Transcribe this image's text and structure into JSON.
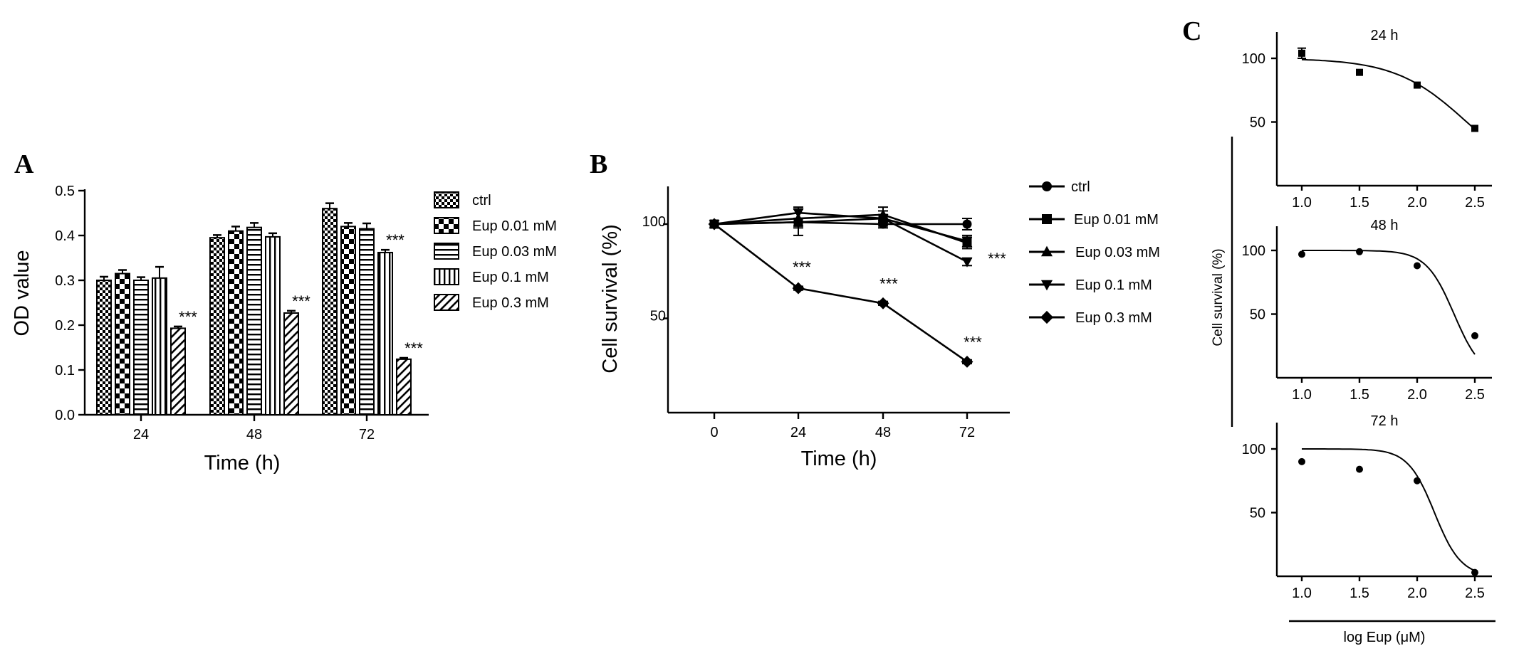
{
  "colors": {
    "ink": "#000000",
    "background": "#ffffff"
  },
  "panel_labels": [
    "A",
    "B",
    "C"
  ],
  "chart_data": [
    {
      "id": "A",
      "type": "bar",
      "xlabel": "Time (h)",
      "ylabel": "OD value",
      "ylim": [
        0,
        0.5
      ],
      "yticks": [
        "0.0",
        "0.1",
        "0.2",
        "0.3",
        "0.4",
        "0.5"
      ],
      "categories": [
        "24",
        "48",
        "72"
      ],
      "series": [
        {
          "name": "ctrl",
          "pattern": "checker-small",
          "values": [
            0.3,
            0.395,
            0.46
          ],
          "errors": [
            0.008,
            0.006,
            0.012
          ]
        },
        {
          "name": "Eup 0.01 mM",
          "pattern": "checker-large",
          "values": [
            0.315,
            0.41,
            0.42
          ],
          "errors": [
            0.008,
            0.01,
            0.008
          ]
        },
        {
          "name": "Eup 0.03 mM",
          "pattern": "horizontal",
          "values": [
            0.3,
            0.418,
            0.415
          ],
          "errors": [
            0.007,
            0.01,
            0.012
          ]
        },
        {
          "name": "Eup 0.1 mM",
          "pattern": "vertical",
          "values": [
            0.305,
            0.397,
            0.362
          ],
          "errors": [
            0.025,
            0.008,
            0.006
          ]
        },
        {
          "name": "Eup 0.3 mM",
          "pattern": "diagonal",
          "values": [
            0.193,
            0.227,
            0.124
          ],
          "errors": [
            0.004,
            0.005,
            0.003
          ]
        }
      ],
      "annotations": [
        {
          "category": "24",
          "series": "Eup 0.3 mM",
          "text": "***"
        },
        {
          "category": "48",
          "series": "Eup 0.3 mM",
          "text": "***"
        },
        {
          "category": "72",
          "series": "Eup 0.1 mM",
          "text": "***"
        },
        {
          "category": "72",
          "series": "Eup 0.3 mM",
          "text": "***"
        }
      ],
      "legend": "right"
    },
    {
      "id": "B",
      "type": "line",
      "xlabel": "Time (h)",
      "ylabel": "Cell survival (%)",
      "x": [
        0,
        24,
        48,
        72
      ],
      "xticks": [
        "0",
        "24",
        "48",
        "72"
      ],
      "ylim": [
        0,
        120
      ],
      "yticks": [
        "50",
        "100"
      ],
      "series": [
        {
          "name": "ctrl",
          "marker": "circle",
          "values": [
            100,
            101,
            100,
            100
          ],
          "errors": [
            0,
            2,
            2,
            3
          ]
        },
        {
          "name": "Eup 0.01 mM",
          "marker": "square",
          "values": [
            100,
            101,
            103,
            91
          ],
          "errors": [
            0,
            7,
            2,
            3
          ]
        },
        {
          "name": "Eup 0.03 mM",
          "marker": "triangle-up",
          "values": [
            100,
            103,
            105,
            90
          ],
          "errors": [
            0,
            5,
            4,
            3
          ]
        },
        {
          "name": "Eup 0.1 mM",
          "marker": "triangle-down",
          "values": [
            100,
            106,
            103,
            80
          ],
          "errors": [
            0,
            3,
            4,
            2
          ]
        },
        {
          "name": "Eup 0.3 mM",
          "marker": "diamond",
          "values": [
            100,
            66,
            58,
            27
          ],
          "errors": [
            0,
            1,
            1,
            1
          ]
        }
      ],
      "annotations": [
        {
          "x": 24,
          "text": "***"
        },
        {
          "x": 48,
          "text": "***"
        },
        {
          "x": 72,
          "text": "***",
          "series": "Eup 0.1 mM"
        },
        {
          "x": 72,
          "text": "***",
          "series": "Eup 0.3 mM"
        }
      ],
      "legend": "right"
    },
    {
      "id": "C",
      "type": "scatter",
      "xlabel": "log Eup (μM)",
      "ylabel": "Cell survival (%)",
      "subplots": [
        {
          "title": "24 h",
          "x": [
            1.0,
            1.5,
            2.0,
            2.5
          ],
          "values": [
            104,
            89,
            79,
            45
          ],
          "errors": [
            4,
            0,
            0,
            0
          ],
          "marker": "square",
          "fit": {
            "top": 100,
            "logic50": 2.43,
            "hill": 1.4
          },
          "ylim": [
            0,
            120
          ],
          "yticks": [
            "50",
            "100"
          ],
          "xticks": [
            "1.0",
            "1.5",
            "2.0",
            "2.5"
          ]
        },
        {
          "title": "48 h",
          "x": [
            1.0,
            1.5,
            2.0,
            2.5
          ],
          "values": [
            97,
            99,
            88,
            33
          ],
          "errors": [
            0,
            0,
            0,
            0
          ],
          "marker": "circle",
          "fit": {
            "top": 100,
            "logic50": 2.32,
            "hill": 3.6
          },
          "ylim": [
            0,
            120
          ],
          "yticks": [
            "50",
            "100"
          ],
          "xticks": [
            "1.0",
            "1.5",
            "2.0",
            "2.5"
          ]
        },
        {
          "title": "72 h",
          "x": [
            1.0,
            1.5,
            2.0,
            2.5
          ],
          "values": [
            90,
            84,
            75,
            3
          ],
          "errors": [
            0,
            0,
            0,
            0
          ],
          "marker": "circle",
          "fit": {
            "top": 100,
            "logic50": 2.15,
            "hill": 3.8
          },
          "ylim": [
            0,
            120
          ],
          "yticks": [
            "50",
            "100"
          ],
          "xticks": [
            "1.0",
            "1.5",
            "2.0",
            "2.5"
          ]
        }
      ]
    }
  ]
}
